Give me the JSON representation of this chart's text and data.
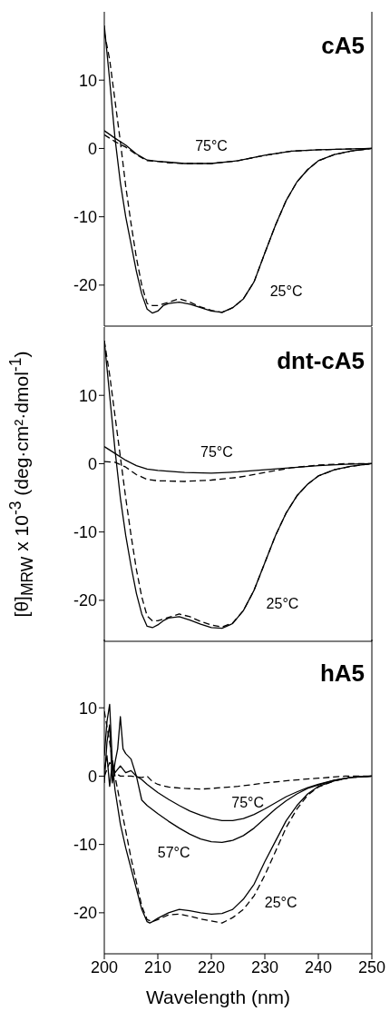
{
  "chart_data": [
    {
      "type": "line",
      "title": "cA5",
      "xlim": [
        200,
        250
      ],
      "xticks": [
        200,
        210,
        220,
        230,
        240,
        250
      ],
      "ylim": [
        -26,
        20
      ],
      "yticks": [
        -20,
        -10,
        0,
        10
      ],
      "tick_labels": "y",
      "series": [
        {
          "name": "25°C",
          "color": "#000000",
          "line_style": "solid",
          "x": [
            200,
            201,
            202,
            203,
            204,
            205,
            206,
            207,
            208,
            209,
            210,
            211,
            212,
            214,
            216,
            218,
            220,
            222,
            224,
            226,
            228,
            230,
            232,
            234,
            236,
            238,
            240,
            243,
            246,
            250
          ],
          "values": [
            18,
            10,
            1.5,
            -5,
            -10,
            -14,
            -18,
            -21.3,
            -23.5,
            -24.1,
            -23.8,
            -23,
            -22.7,
            -22.5,
            -22.8,
            -23.3,
            -23.8,
            -24,
            -23.3,
            -22,
            -19.5,
            -15.3,
            -11.2,
            -7.6,
            -4.9,
            -3.1,
            -1.8,
            -0.9,
            -0.4,
            0
          ]
        },
        {
          "color": "#000000",
          "line_style": "dashed",
          "x": [
            200,
            201,
            202,
            203,
            204,
            205,
            206,
            207,
            208,
            209,
            210,
            212,
            214,
            216,
            218,
            220,
            222,
            224,
            226,
            228,
            230,
            232,
            234,
            236,
            238,
            240,
            243,
            246,
            250
          ],
          "values": [
            17,
            13,
            7,
            1,
            -5.5,
            -11,
            -16,
            -20,
            -22.7,
            -23,
            -23,
            -22.5,
            -22,
            -22.5,
            -23.2,
            -23.7,
            -24,
            -23.3,
            -22,
            -19.5,
            -15.3,
            -11.2,
            -7.6,
            -4.9,
            -3.1,
            -1.8,
            -0.9,
            -0.4,
            0
          ]
        },
        {
          "name": "75°C",
          "color": "#000000",
          "line_style": "solid",
          "x": [
            200,
            202,
            204,
            206,
            208,
            210,
            212,
            215,
            220,
            225,
            230,
            235,
            240,
            245,
            250
          ],
          "values": [
            2.6,
            1.5,
            0.5,
            -0.8,
            -1.7,
            -1.9,
            -2,
            -2.2,
            -2.2,
            -1.8,
            -1,
            -0.4,
            -0.2,
            -0.1,
            0
          ]
        },
        {
          "color": "#000000",
          "line_style": "dashed",
          "x": [
            200,
            202,
            204,
            206,
            208,
            210,
            212,
            215,
            220,
            225,
            230,
            235,
            240,
            245,
            250
          ],
          "values": [
            2,
            1,
            0.2,
            -0.9,
            -1.8,
            -1.9,
            -2.1,
            -2.2,
            -2.2,
            -1.8,
            -1,
            -0.4,
            -0.2,
            -0.1,
            0
          ]
        }
      ]
    },
    {
      "type": "line",
      "title": "dnt-cA5",
      "ylabel": "[θ]$_{MRW}$ x 10$^{-3}$ (deg·cm²·dmol$^{-1}$)",
      "xlim": [
        200,
        250
      ],
      "xticks": [
        200,
        210,
        220,
        230,
        240,
        250
      ],
      "ylim": [
        -26,
        20
      ],
      "yticks": [
        -20,
        -10,
        0,
        10
      ],
      "tick_labels": "y",
      "series": [
        {
          "name": "25°C",
          "color": "#000000",
          "line_style": "solid",
          "x": [
            200,
            201,
            202,
            203,
            204,
            205,
            206,
            207,
            208,
            209,
            210,
            211,
            212,
            214,
            216,
            218,
            220,
            222,
            224,
            226,
            228,
            230,
            232,
            234,
            236,
            238,
            240,
            243,
            246,
            250
          ],
          "values": [
            18,
            10,
            2,
            -5,
            -10.5,
            -15,
            -19,
            -22,
            -23.8,
            -24,
            -23.6,
            -23,
            -22.6,
            -22.4,
            -22.9,
            -23.5,
            -24,
            -24.1,
            -23.4,
            -21.5,
            -18.5,
            -14.5,
            -10.5,
            -7.2,
            -4.7,
            -3,
            -1.8,
            -0.9,
            -0.4,
            0
          ]
        },
        {
          "color": "#000000",
          "line_style": "dashed",
          "x": [
            200,
            201,
            202,
            203,
            204,
            205,
            206,
            207,
            208,
            209,
            210,
            212,
            214,
            216,
            218,
            220,
            222,
            224,
            226,
            228,
            230,
            232,
            234,
            236,
            238,
            240,
            243,
            246,
            250
          ],
          "values": [
            18,
            13,
            7,
            1,
            -5,
            -10.5,
            -15.5,
            -19.5,
            -22.3,
            -23,
            -23,
            -22.5,
            -22,
            -22.4,
            -23.1,
            -23.6,
            -23.9,
            -23.3,
            -21.5,
            -18.5,
            -14.5,
            -10.5,
            -7.2,
            -4.7,
            -3,
            -1.8,
            -0.9,
            -0.4,
            0
          ]
        },
        {
          "name": "75°C",
          "color": "#000000",
          "line_style": "solid",
          "x": [
            200,
            202,
            204,
            206,
            208,
            210,
            215,
            220,
            225,
            230,
            235,
            240,
            245,
            250
          ],
          "values": [
            2.5,
            1.5,
            0.5,
            -0.3,
            -0.8,
            -1,
            -1.3,
            -1.4,
            -1.2,
            -0.9,
            -0.6,
            -0.3,
            -0.1,
            0
          ]
        },
        {
          "color": "#000000",
          "line_style": "dashed",
          "x": [
            200,
            202,
            204,
            206,
            208,
            210,
            215,
            220,
            225,
            230,
            235,
            240,
            245,
            250
          ],
          "values": [
            0.3,
            0.2,
            -0.5,
            -1.6,
            -2.3,
            -2.5,
            -2.6,
            -2.4,
            -2,
            -1.3,
            -0.6,
            -0.2,
            0,
            0
          ]
        }
      ]
    },
    {
      "type": "line",
      "title": "hA5",
      "xlabel": "Wavelength (nm)",
      "xlim": [
        200,
        250
      ],
      "xticks": [
        200,
        210,
        220,
        230,
        240,
        250
      ],
      "ylim": [
        -26,
        20
      ],
      "yticks": [
        -20,
        -10,
        0,
        10
      ],
      "series": [
        {
          "name": "25°C",
          "color": "#000000",
          "line_style": "solid",
          "x": [
            200,
            200.5,
            201,
            201.5,
            202,
            203,
            204,
            205,
            206,
            207,
            208,
            208.5,
            209,
            210,
            212,
            214,
            216,
            218,
            220,
            222,
            224,
            226,
            228,
            230,
            232,
            234,
            236,
            238,
            240,
            243,
            246,
            250
          ],
          "values": [
            3,
            8,
            10.5,
            2,
            -2,
            -7,
            -10.5,
            -13.5,
            -16.5,
            -19.5,
            -21.3,
            -21.5,
            -21.3,
            -20.8,
            -20,
            -19.5,
            -19.7,
            -20,
            -20.2,
            -20.1,
            -19.5,
            -18,
            -15.8,
            -12.5,
            -9.5,
            -6.5,
            -4.3,
            -2.6,
            -1.5,
            -0.7,
            -0.2,
            0
          ]
        },
        {
          "color": "#000000",
          "line_style": "dashed",
          "x": [
            200,
            201,
            202,
            203,
            204,
            205,
            206,
            207,
            208,
            209,
            210,
            212,
            214,
            216,
            218,
            220,
            222,
            224,
            226,
            228,
            230,
            232,
            234,
            236,
            238,
            240,
            243,
            246,
            250
          ],
          "values": [
            9.5,
            5,
            0,
            -4,
            -8,
            -12,
            -15.5,
            -19,
            -21,
            -21.3,
            -21,
            -20.3,
            -20.2,
            -20.5,
            -20.9,
            -21.2,
            -21.5,
            -20.7,
            -19.5,
            -17.5,
            -14.5,
            -11,
            -7.5,
            -4.8,
            -2.8,
            -1.6,
            -0.7,
            -0.2,
            0
          ]
        },
        {
          "name": "57°C",
          "color": "#000000",
          "line_style": "solid",
          "x": [
            200,
            200.5,
            201,
            201.5,
            202,
            202.5,
            203,
            203.5,
            204,
            205,
            206,
            207,
            208,
            210,
            212,
            214,
            216,
            218,
            220,
            222,
            224,
            226,
            228,
            230,
            232,
            234,
            236,
            238,
            240,
            243,
            246,
            250
          ],
          "values": [
            -1,
            5,
            7.5,
            -1,
            2,
            4,
            8.7,
            4,
            3.3,
            2.5,
            0,
            -3.5,
            -4.3,
            -5.5,
            -6.6,
            -7.6,
            -8.5,
            -9.2,
            -9.6,
            -9.7,
            -9.4,
            -8.7,
            -7.6,
            -6.2,
            -4.8,
            -3.6,
            -2.6,
            -1.8,
            -1.3,
            -0.6,
            -0.2,
            0
          ]
        },
        {
          "name": "75°C",
          "color": "#000000",
          "line_style": "solid",
          "x": [
            200,
            200.5,
            201,
            201.5,
            202,
            203,
            204,
            205,
            206,
            207,
            208,
            210,
            212,
            214,
            216,
            218,
            220,
            222,
            224,
            226,
            228,
            230,
            232,
            234,
            236,
            238,
            240,
            243,
            246,
            250
          ],
          "values": [
            1,
            3,
            -1.5,
            2,
            0.5,
            1.5,
            0.5,
            0.8,
            0,
            -0.5,
            -1.2,
            -2.4,
            -3.4,
            -4.3,
            -5.1,
            -5.7,
            -6.2,
            -6.5,
            -6.5,
            -6.2,
            -5.6,
            -4.8,
            -3.9,
            -3,
            -2.3,
            -1.7,
            -1.2,
            -0.6,
            -0.2,
            0
          ]
        },
        {
          "color": "#000000",
          "line_style": "dashed",
          "x": [
            200,
            201,
            202,
            203,
            205,
            207,
            208,
            209,
            210,
            212,
            215,
            218,
            220,
            225,
            230,
            235,
            240,
            245,
            250
          ],
          "values": [
            0,
            2,
            0.5,
            0,
            0,
            -0.2,
            0,
            -0.8,
            -1.2,
            -1.6,
            -1.8,
            -1.9,
            -1.8,
            -1.5,
            -1,
            -0.6,
            -0.3,
            0,
            0
          ]
        }
      ]
    }
  ]
}
